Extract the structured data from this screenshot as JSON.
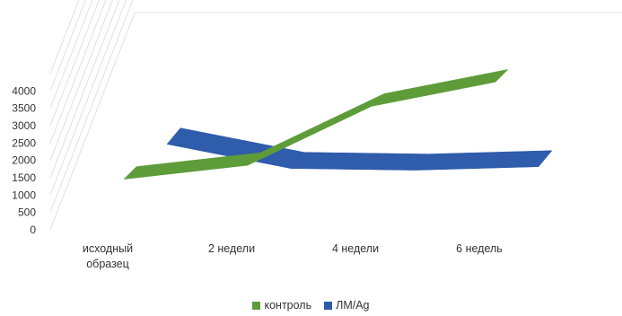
{
  "chart_data": {
    "type": "line",
    "title": "",
    "xlabel": "",
    "ylabel": "",
    "categories": [
      "исходный образец",
      "2 недели",
      "4 недели",
      "6 недель"
    ],
    "category_lines": [
      [
        "исходный",
        "образец"
      ],
      [
        "2 недели"
      ],
      [
        "4 недели"
      ],
      [
        "6 недель"
      ]
    ],
    "yticks": [
      0,
      500,
      1000,
      1500,
      2000,
      2500,
      3000,
      3500,
      4000
    ],
    "ylim": [
      0,
      4500
    ],
    "grid": true,
    "legend": "bottom",
    "series": [
      {
        "name": "контроль",
        "color": "#5e9c3a",
        "values": [
          1200,
          1600,
          3300,
          4000
        ]
      },
      {
        "name": "ЛМ/Ag",
        "color": "#2f5cab",
        "values": [
          1950,
          1250,
          1200,
          1300
        ]
      }
    ]
  }
}
